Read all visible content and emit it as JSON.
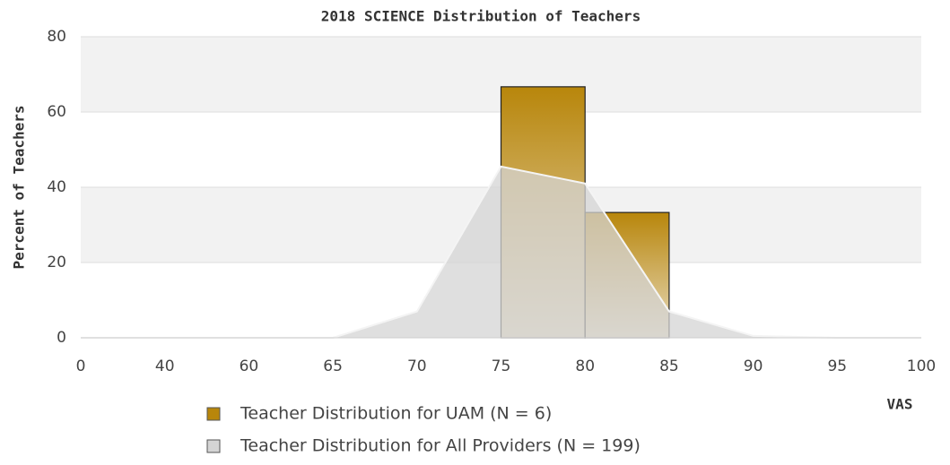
{
  "chart_data": {
    "type": "bar",
    "title": "2018 SCIENCE Distribution of Teachers",
    "ylabel": "Percent of Teachers",
    "xlabel": "VAS",
    "categories": [
      "0",
      "40",
      "60",
      "65",
      "70",
      "75",
      "80",
      "85",
      "90",
      "95",
      "100"
    ],
    "ylim": [
      0,
      80
    ],
    "yticks": [
      0,
      20,
      40,
      60,
      80
    ],
    "grid": true,
    "series": [
      {
        "name": "Teacher Distribution for UAM (N = 6)",
        "type": "bar",
        "color": "#b8860b",
        "values": [
          0,
          0,
          0,
          0,
          0,
          66.7,
          33.3,
          0,
          0,
          0,
          0
        ]
      },
      {
        "name": "Teacher Distribution for All Providers (N = 199)",
        "type": "area",
        "color": "#d4d4d4",
        "values": [
          0,
          0,
          0,
          0,
          7,
          45.5,
          41,
          7,
          0.5,
          0,
          0
        ]
      }
    ]
  }
}
